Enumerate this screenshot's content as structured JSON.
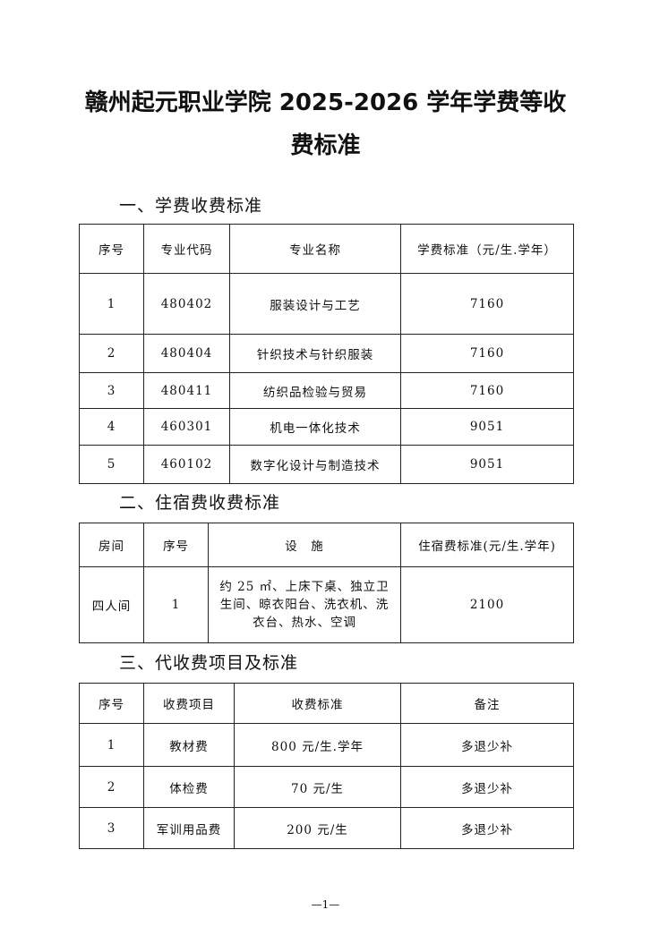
{
  "title": {
    "line1": "赣州起元职业学院 2025-2026 学年学费等收",
    "line2": "费标准"
  },
  "sections": [
    {
      "heading": "一、学费收费标准",
      "headers": [
        "序号",
        "专业代码",
        "专业名称",
        "学费标准（元/生.学年）"
      ],
      "rows": [
        [
          "1",
          "480402",
          "服装设计与工艺",
          "7160"
        ],
        [
          "2",
          "480404",
          "针织技术与针织服装",
          "7160"
        ],
        [
          "3",
          "480411",
          "纺织品检验与贸易",
          "7160"
        ],
        [
          "4",
          "460301",
          "机电一体化技术",
          "9051"
        ],
        [
          "5",
          "460102",
          "数字化设计与制造技术",
          "9051"
        ]
      ]
    },
    {
      "heading": "二、住宿费收费标准",
      "headers": [
        "房间",
        "序号",
        "设　施",
        "住宿费标准(元/生.学年)"
      ],
      "rows": [
        [
          "四人间",
          "1",
          "约 25 ㎡、上床下桌、独立卫生间、晾衣阳台、洗衣机、洗衣台、热水、空调",
          "2100"
        ]
      ]
    },
    {
      "heading": "三、代收费项目及标准",
      "headers": [
        "序号",
        "收费项目",
        "收费标准",
        "备注"
      ],
      "rows": [
        [
          "1",
          "教材费",
          "800 元/生.学年",
          "多退少补"
        ],
        [
          "2",
          "体检费",
          "70 元/生",
          "多退少补"
        ],
        [
          "3",
          "军训用品费",
          "200 元/生",
          "多退少补"
        ]
      ]
    }
  ],
  "footer": {
    "page": "—1—"
  }
}
